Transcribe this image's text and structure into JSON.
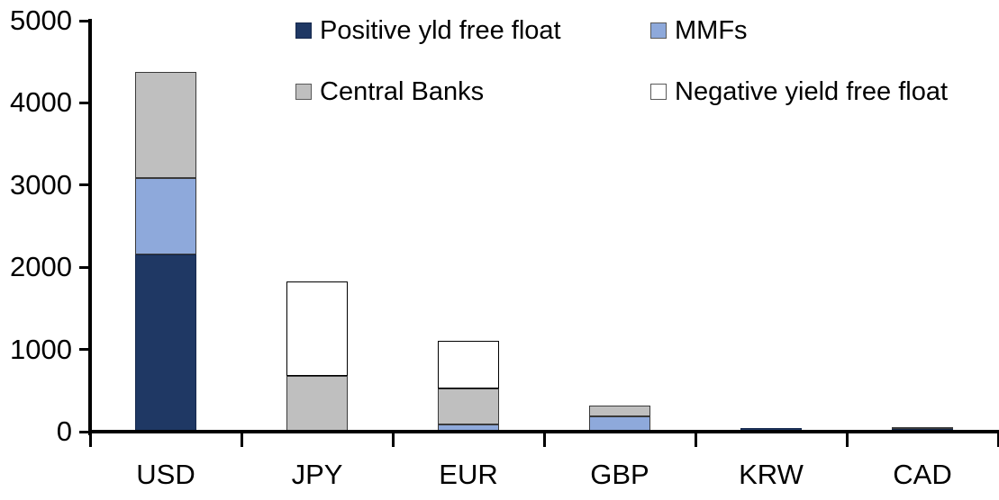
{
  "chart_data": {
    "type": "bar",
    "stacked": true,
    "title": "",
    "xlabel": "",
    "ylabel": "",
    "categories": [
      "USD",
      "JPY",
      "EUR",
      "GBP",
      "KRW",
      "CAD"
    ],
    "series": [
      {
        "name": "Positive yld free float",
        "color": "#1F3864",
        "border": "#16294D",
        "values": [
          2150,
          0,
          0,
          0,
          40,
          30
        ]
      },
      {
        "name": "MMFs",
        "color": "#8EA9DB",
        "border": "#3A3A3A",
        "values": [
          940,
          0,
          90,
          190,
          0,
          0
        ]
      },
      {
        "name": "Central Banks",
        "color": "#BFBFBF",
        "border": "#3A3A3A",
        "values": [
          1290,
          680,
          430,
          130,
          0,
          30
        ]
      },
      {
        "name": "Negative yield free float",
        "color": "#FFFFFF",
        "border": "#000000",
        "values": [
          0,
          1150,
          580,
          0,
          0,
          0
        ]
      }
    ],
    "totals": [
      4380,
      1830,
      1100,
      320,
      40,
      60
    ],
    "ylim": [
      0,
      5000
    ],
    "yticks": [
      0,
      1000,
      2000,
      3000,
      4000,
      5000
    ],
    "ytick_labels": [
      "0",
      "1000",
      "2000",
      "3000",
      "4000",
      "5000"
    ],
    "grid": false,
    "legend_position": "top",
    "legend_rows": 2
  },
  "colors": {
    "background": "#FFFFFF",
    "axis": "#000000",
    "text": "#000000",
    "segment_border": "#3A3A3A"
  }
}
